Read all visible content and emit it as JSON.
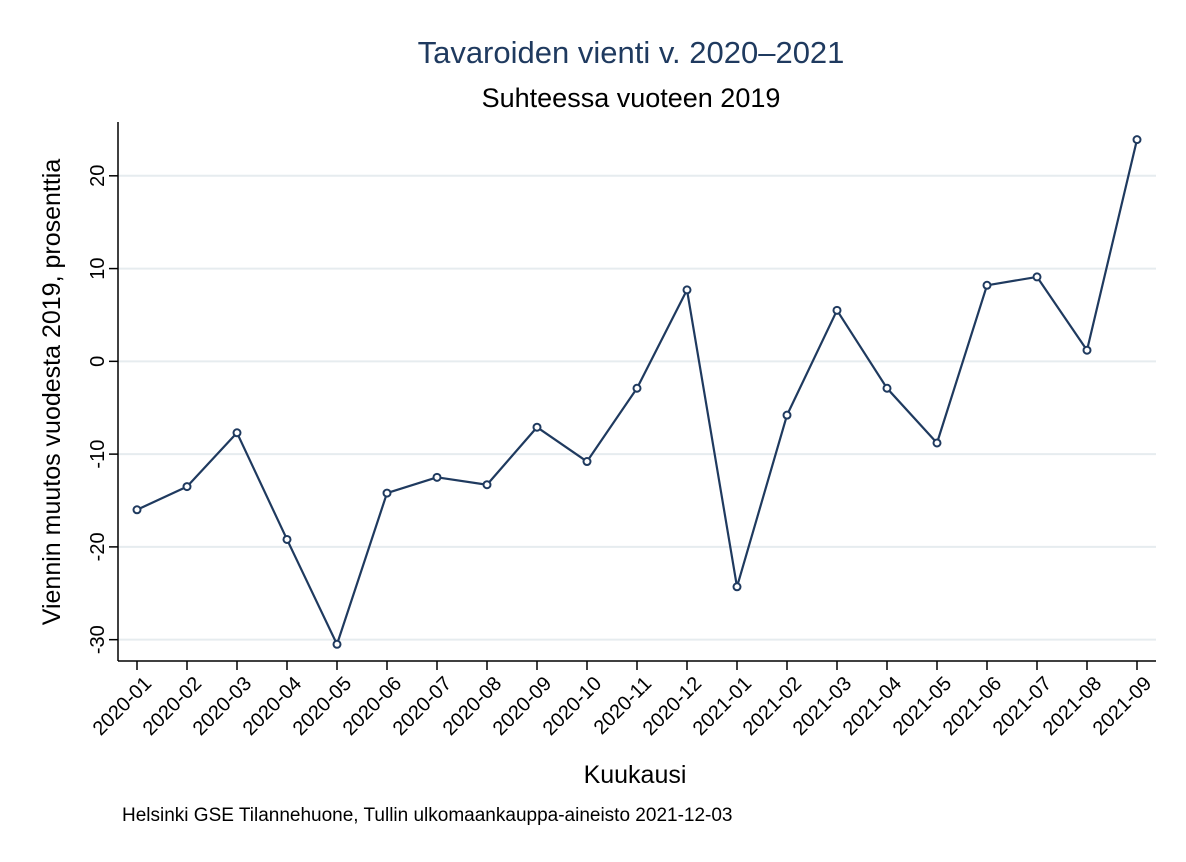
{
  "chart_data": {
    "type": "line",
    "title": "Tavaroiden vienti v. 2020–2021",
    "subtitle": "Suhteessa vuoteen 2019",
    "xlabel": "Kuukausi",
    "ylabel": "Viennin muutos vuodesta 2019, prosenttia",
    "note": "Helsinki GSE Tilannehuone, Tullin ulkomaankauppa-aineisto 2021-12-03",
    "categories": [
      "2020-01",
      "2020-02",
      "2020-03",
      "2020-04",
      "2020-05",
      "2020-06",
      "2020-07",
      "2020-08",
      "2020-09",
      "2020-10",
      "2020-11",
      "2020-12",
      "2021-01",
      "2021-02",
      "2021-03",
      "2021-04",
      "2021-05",
      "2021-06",
      "2021-07",
      "2021-08",
      "2021-09"
    ],
    "values": [
      -16.0,
      -13.5,
      -7.7,
      -19.2,
      -30.5,
      -14.2,
      -12.5,
      -13.3,
      -7.1,
      -10.8,
      -2.9,
      7.7,
      -24.3,
      -5.8,
      5.5,
      -2.9,
      -8.8,
      8.2,
      9.1,
      1.2,
      23.9
    ],
    "yticks": [
      20,
      10,
      0,
      -10,
      -20,
      -30
    ],
    "ytick_labels": [
      "20",
      "10",
      "0",
      "-10",
      "-20",
      "-30"
    ],
    "ylim": [
      -32.3,
      25.8
    ],
    "grid": true,
    "colors": {
      "line": "#1f3a5f",
      "grid": "#e6ecef",
      "axis": "#000000"
    }
  }
}
